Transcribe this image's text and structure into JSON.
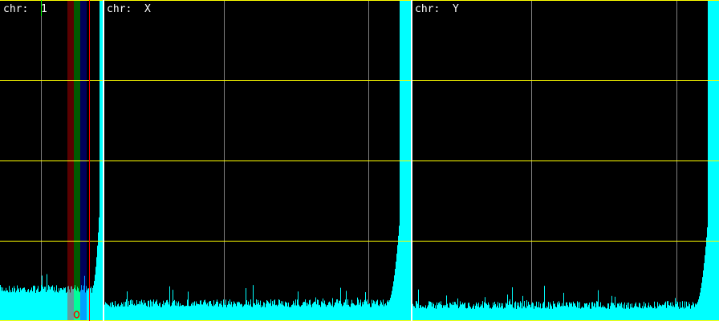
{
  "chart_data": {
    "type": "bar",
    "title": "",
    "grid": true,
    "colors": {
      "background": "#000000",
      "bars": "#00ffff",
      "hgrid": "#ffff00",
      "vgrid": "#808080",
      "separator": "#ffffff",
      "marker": "#ff0000"
    },
    "panels": [
      {
        "label": "chr:  1"
      },
      {
        "label": "chr:  X"
      },
      {
        "label": "chr:  Y"
      }
    ]
  }
}
